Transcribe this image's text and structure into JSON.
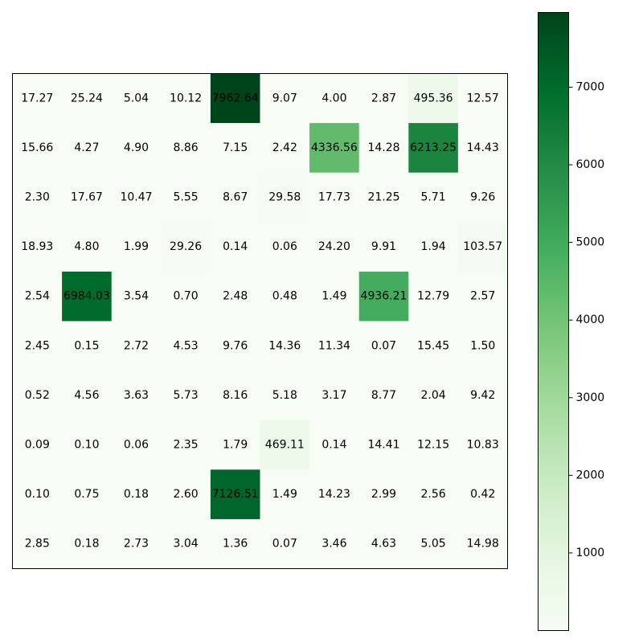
{
  "chart_data": {
    "type": "heatmap",
    "colormap": "Greens",
    "rows": 10,
    "cols": 10,
    "values": [
      [
        17.27,
        25.24,
        5.04,
        10.12,
        7962.64,
        9.07,
        4.0,
        2.87,
        495.36,
        12.57
      ],
      [
        15.66,
        4.27,
        4.9,
        8.86,
        7.15,
        2.42,
        4336.56,
        14.28,
        6213.25,
        14.43
      ],
      [
        2.3,
        17.67,
        10.47,
        5.55,
        8.67,
        29.58,
        17.73,
        21.25,
        5.71,
        9.26
      ],
      [
        18.93,
        4.8,
        1.99,
        29.26,
        0.14,
        0.06,
        24.2,
        9.91,
        1.94,
        103.57
      ],
      [
        2.54,
        6984.03,
        3.54,
        0.7,
        2.48,
        0.48,
        1.49,
        4936.21,
        12.79,
        2.57
      ],
      [
        2.45,
        0.15,
        2.72,
        4.53,
        9.76,
        14.36,
        11.34,
        0.07,
        15.45,
        1.5
      ],
      [
        0.52,
        4.56,
        3.63,
        5.73,
        8.16,
        5.18,
        3.17,
        8.77,
        2.04,
        9.42
      ],
      [
        0.09,
        0.1,
        0.06,
        2.35,
        1.79,
        469.11,
        0.14,
        14.41,
        12.15,
        10.83
      ],
      [
        0.1,
        0.75,
        0.18,
        2.6,
        7126.51,
        1.49,
        14.23,
        2.99,
        2.56,
        0.42
      ],
      [
        2.85,
        0.18,
        2.73,
        3.04,
        1.36,
        0.07,
        3.46,
        4.63,
        5.05,
        14.98
      ]
    ],
    "labels": [
      [
        "17.27",
        "25.24",
        "5.04",
        "10.12",
        "7962.64",
        "9.07",
        "4.00",
        "2.87",
        "495.36",
        "12.57"
      ],
      [
        "15.66",
        "4.27",
        "4.90",
        "8.86",
        "7.15",
        "2.42",
        "4336.56",
        "14.28",
        "6213.25",
        "14.43"
      ],
      [
        "2.30",
        "17.67",
        "10.47",
        "5.55",
        "8.67",
        "29.58",
        "17.73",
        "21.25",
        "5.71",
        "9.26"
      ],
      [
        "18.93",
        "4.80",
        "1.99",
        "29.26",
        "0.14",
        "0.06",
        "24.20",
        "9.91",
        "1.94",
        "103.57"
      ],
      [
        "2.54",
        "6984.03",
        "3.54",
        "0.70",
        "2.48",
        "0.48",
        "1.49",
        "4936.21",
        "12.79",
        "2.57"
      ],
      [
        "2.45",
        "0.15",
        "2.72",
        "4.53",
        "9.76",
        "14.36",
        "11.34",
        "0.07",
        "15.45",
        "1.50"
      ],
      [
        "0.52",
        "4.56",
        "3.63",
        "5.73",
        "8.16",
        "5.18",
        "3.17",
        "8.77",
        "2.04",
        "9.42"
      ],
      [
        "0.09",
        "0.10",
        "0.06",
        "2.35",
        "1.79",
        "469.11",
        "0.14",
        "14.41",
        "12.15",
        "10.83"
      ],
      [
        "0.10",
        "0.75",
        "0.18",
        "2.60",
        "7126.51",
        "1.49",
        "14.23",
        "2.99",
        "2.56",
        "0.42"
      ],
      [
        "2.85",
        "0.18",
        "2.73",
        "3.04",
        "1.36",
        "0.07",
        "3.46",
        "4.63",
        "5.05",
        "14.98"
      ]
    ],
    "vmin": 0.06,
    "vmax": 7962.64,
    "colorbar_ticks": [
      1000,
      2000,
      3000,
      4000,
      5000,
      6000,
      7000
    ],
    "colorbar_tick_labels": [
      "1000",
      "2000",
      "3000",
      "4000",
      "5000",
      "6000",
      "7000"
    ],
    "title": "",
    "xlabel": "",
    "ylabel": "",
    "grid": false
  }
}
